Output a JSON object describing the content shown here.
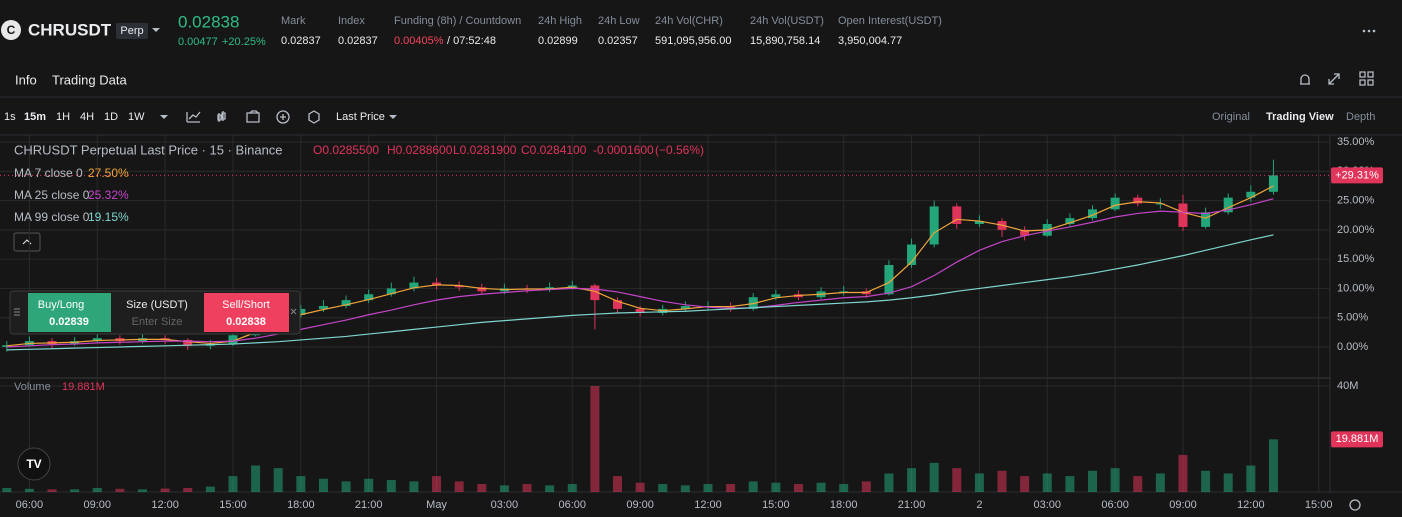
{
  "header": {
    "symbol": "CHRUSDT",
    "badge": "Perp",
    "price": "0.02838",
    "change": "0.00477",
    "change_pct": "+20.25%",
    "stats": [
      {
        "label": "Mark",
        "value": "0.02837"
      },
      {
        "label": "Index",
        "value": "0.02837"
      },
      {
        "label": "Funding (8h) / Countdown",
        "value": "0.00405%",
        "countdown": "/ 07:52:48"
      },
      {
        "label": "24h High",
        "value": "0.02899"
      },
      {
        "label": "24h Low",
        "value": "0.02357"
      },
      {
        "label": "24h Vol(CHR)",
        "value": "591,095,956.00"
      },
      {
        "label": "24h Vol(USDT)",
        "value": "15,890,758.14"
      },
      {
        "label": "Open Interest(USDT)",
        "value": "3,950,004.77"
      }
    ]
  },
  "tabs": [
    "Info",
    "Trading Data"
  ],
  "toolbar": {
    "intervals": [
      "1s",
      "15m",
      "1H",
      "4H",
      "1D",
      "1W"
    ],
    "price_type": "Last Price",
    "views": [
      "Original",
      "Trading View",
      "Depth"
    ]
  },
  "legend": {
    "title": "CHRUSDT Perpetual Last Price · 15 · Binance",
    "ohlc": [
      "O0.0285500",
      "H0.0288600",
      "L0.0281900",
      "C0.0284100",
      "-0.0001600",
      "(−0.56%)"
    ]
  },
  "order_panel": {
    "buy": "Buy/Long",
    "buy_price": "0.02839",
    "size": "Size (USDT)",
    "size_placeholder": "Enter Size",
    "sell": "Sell/Short",
    "sell_price": "0.02838"
  },
  "chart_data": {
    "type": "candlestick",
    "up_color": "#23a67a",
    "down_color": "#e0345a",
    "open": [
      0,
      0.3,
      1.0,
      0.5,
      1.0,
      1.5,
      1.0,
      1.5,
      1.2,
      0.2,
      0.5,
      2.0,
      4.5,
      5.5,
      6.5,
      7.0,
      8.0,
      9.0,
      10.0,
      11.0,
      10.5,
      10.2,
      9.5,
      10.0,
      9.8,
      10.2,
      10.5,
      8.0,
      6.5,
      5.8,
      6.5,
      7.0,
      7.0,
      6.5,
      8.5,
      9.0,
      8.5,
      9.5,
      9.5,
      9.0,
      14.0,
      17.5,
      24.0,
      21.0,
      21.5,
      20.0,
      19.0,
      21.0,
      22.0,
      23.5,
      25.5,
      24.5,
      24.5,
      20.5,
      23.0,
      25.5,
      26.5
    ],
    "high": [
      1.0,
      1.8,
      1.5,
      1.7,
      2.2,
      2.0,
      2.3,
      2.0,
      1.5,
      1.2,
      2.6,
      5.2,
      6.3,
      7.2,
      8.0,
      8.8,
      9.8,
      11.0,
      12.0,
      11.8,
      11.2,
      10.8,
      10.8,
      10.6,
      11.0,
      11.3,
      10.8,
      8.5,
      7.0,
      7.2,
      7.8,
      7.8,
      7.6,
      9.2,
      9.8,
      9.6,
      10.2,
      10.4,
      10.0,
      14.8,
      18.5,
      25.0,
      24.5,
      22.5,
      22.0,
      20.6,
      21.8,
      22.8,
      24.2,
      26.2,
      26.0,
      25.4,
      26.0,
      23.8,
      26.2,
      27.6,
      32.0
    ],
    "low": [
      -0.8,
      0,
      -0.2,
      0.2,
      0.6,
      0.4,
      0.6,
      0.5,
      -0.5,
      -0.4,
      0.2,
      1.8,
      4.0,
      5.0,
      6.0,
      6.6,
      7.5,
      8.6,
      9.5,
      9.8,
      9.6,
      9.0,
      9.0,
      9.2,
      9.4,
      9.8,
      3.0,
      5.8,
      5.2,
      5.4,
      6.0,
      6.2,
      6.0,
      6.2,
      8.0,
      8.0,
      8.2,
      8.8,
      8.4,
      8.8,
      13.5,
      17.0,
      20.2,
      20.5,
      18.8,
      18.2,
      18.8,
      20.6,
      21.6,
      23.2,
      24.0,
      23.6,
      19.8,
      20.2,
      22.6,
      24.8,
      26.0
    ],
    "close": [
      0.3,
      1.0,
      0.5,
      1.0,
      1.5,
      1.0,
      1.5,
      1.2,
      0.2,
      0.5,
      2.0,
      4.5,
      5.5,
      6.5,
      7.0,
      8.0,
      9.0,
      10.0,
      11.0,
      10.5,
      10.2,
      9.5,
      10.0,
      9.8,
      10.2,
      10.5,
      8.0,
      6.5,
      5.8,
      6.5,
      7.0,
      7.0,
      6.5,
      8.5,
      9.0,
      8.5,
      9.5,
      9.5,
      9.0,
      14.0,
      17.5,
      24.0,
      21.0,
      21.5,
      20.0,
      19.0,
      21.0,
      22.0,
      23.5,
      25.5,
      24.5,
      24.5,
      20.5,
      23.0,
      25.5,
      26.5,
      29.3
    ],
    "volume": [
      1.5,
      1.2,
      1.0,
      1.0,
      1.5,
      1.2,
      1.0,
      1.3,
      1.5,
      2.0,
      6.0,
      10.0,
      9.0,
      6.0,
      5.0,
      4.0,
      5.0,
      4.5,
      4.0,
      6.0,
      4.0,
      3.0,
      2.5,
      3.0,
      2.5,
      3.0,
      40.0,
      6.0,
      3.5,
      3.0,
      2.5,
      3.0,
      3.0,
      4.0,
      3.5,
      3.0,
      3.5,
      3.0,
      4.0,
      7.0,
      9.0,
      11.0,
      9.0,
      7.0,
      8.0,
      6.0,
      7.0,
      6.0,
      8.0,
      9.0,
      6.0,
      7.0,
      14.0,
      8.0,
      7.0,
      10.0,
      19.881
    ],
    "ma": [
      {
        "name": "MA 7 close 0",
        "color": "#f0a43a",
        "label": "27.50%",
        "values": [
          0.2,
          0.6,
          0.7,
          0.8,
          1.1,
          1.2,
          1.3,
          1.3,
          0.9,
          0.6,
          1.0,
          2.5,
          4.2,
          5.5,
          6.4,
          7.2,
          8.1,
          9.1,
          10.1,
          10.6,
          10.5,
          10.0,
          9.8,
          9.9,
          9.9,
          10.2,
          9.5,
          7.8,
          6.6,
          6.2,
          6.5,
          6.9,
          6.9,
          7.4,
          8.4,
          8.8,
          9.0,
          9.3,
          9.3,
          11.0,
          14.5,
          19.5,
          21.8,
          21.5,
          20.8,
          19.8,
          20.0,
          21.2,
          22.5,
          24.2,
          24.8,
          24.6,
          23.0,
          22.0,
          23.8,
          25.5,
          27.5
        ]
      },
      {
        "name": "MA 25 close 0",
        "color": "#c545c9",
        "label": "25.32%",
        "values": [
          0.0,
          0.2,
          0.4,
          0.5,
          0.7,
          0.8,
          0.9,
          1.0,
          1.0,
          0.9,
          1.0,
          1.5,
          2.2,
          3.0,
          3.8,
          4.6,
          5.5,
          6.3,
          7.2,
          8.0,
          8.6,
          9.0,
          9.3,
          9.6,
          9.8,
          10.0,
          9.9,
          9.4,
          8.6,
          7.8,
          7.2,
          6.8,
          6.6,
          6.7,
          7.1,
          7.6,
          8.0,
          8.4,
          8.6,
          9.2,
          10.3,
          12.2,
          14.5,
          16.5,
          18.0,
          19.0,
          19.8,
          20.5,
          21.3,
          22.2,
          22.8,
          23.2,
          23.0,
          22.8,
          23.4,
          24.3,
          25.32
        ]
      },
      {
        "name": "MA 99 close 0",
        "color": "#7fd6d0",
        "label": "19.15%",
        "values": [
          -0.5,
          -0.4,
          -0.3,
          -0.2,
          -0.1,
          0,
          0.1,
          0.2,
          0.3,
          0.4,
          0.5,
          0.7,
          0.9,
          1.2,
          1.5,
          1.8,
          2.2,
          2.6,
          3.0,
          3.4,
          3.8,
          4.2,
          4.5,
          4.8,
          5.1,
          5.4,
          5.6,
          5.8,
          5.9,
          6.0,
          6.1,
          6.3,
          6.5,
          6.7,
          6.9,
          7.1,
          7.3,
          7.5,
          7.7,
          8.0,
          8.4,
          8.9,
          9.5,
          10.0,
          10.5,
          11.0,
          11.5,
          12.0,
          12.6,
          13.3,
          14.0,
          14.8,
          15.6,
          16.5,
          17.4,
          18.3,
          19.15
        ]
      }
    ],
    "last_price": {
      "value": 29.31,
      "label": "+29.31%"
    },
    "xlim": [
      -0.3,
      58.5
    ],
    "xticks": [
      {
        "value": 1,
        "label": "06:00"
      },
      {
        "value": 4,
        "label": "09:00"
      },
      {
        "value": 7,
        "label": "12:00"
      },
      {
        "value": 10,
        "label": "15:00"
      },
      {
        "value": 13,
        "label": "18:00"
      },
      {
        "value": 16,
        "label": "21:00"
      },
      {
        "value": 19,
        "label": "May"
      },
      {
        "value": 22,
        "label": "03:00"
      },
      {
        "value": 25,
        "label": "06:00"
      },
      {
        "value": 28,
        "label": "09:00"
      },
      {
        "value": 31,
        "label": "12:00"
      },
      {
        "value": 34,
        "label": "15:00"
      },
      {
        "value": 37,
        "label": "18:00"
      },
      {
        "value": 40,
        "label": "21:00"
      },
      {
        "value": 43,
        "label": "2"
      },
      {
        "value": 46,
        "label": "03:00"
      },
      {
        "value": 49,
        "label": "06:00"
      },
      {
        "value": 52,
        "label": "09:00"
      },
      {
        "value": 55,
        "label": "12:00"
      },
      {
        "value": 58,
        "label": "15:00"
      }
    ],
    "ylim": [
      -5.3,
      36.2
    ],
    "yticks": [
      {
        "value": 0,
        "label": "0.00%"
      },
      {
        "value": 5,
        "label": "5.00%"
      },
      {
        "value": 10,
        "label": "10.00%"
      },
      {
        "value": 15,
        "label": "15.00%"
      },
      {
        "value": 20,
        "label": "20.00%"
      },
      {
        "value": 25,
        "label": "25.00%"
      },
      {
        "value": 30,
        "label": "30.00%"
      },
      {
        "value": 35,
        "label": "35.00%"
      }
    ],
    "volume_name": "Volume",
    "volume_ylim": [
      0,
      40
    ],
    "volume_yticks": [
      {
        "value": 40,
        "label": "40M"
      }
    ],
    "volume_last": {
      "value": 19.881,
      "label": "19.881M"
    },
    "grid": true
  }
}
